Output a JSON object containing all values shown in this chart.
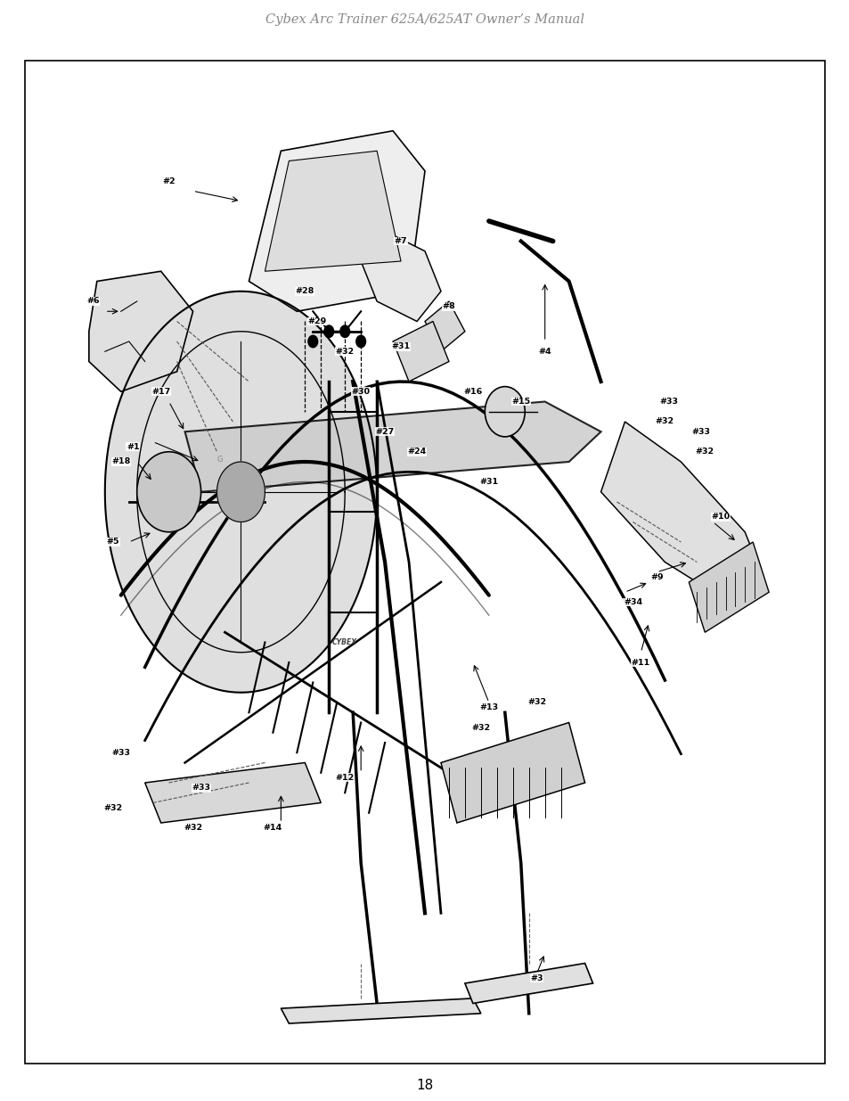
{
  "title": "Cybex Arc Trainer 625A/625AT Owner’s Manual",
  "title_color": "#888888",
  "title_style": "italic",
  "title_fontsize": 10.5,
  "page_number": "18",
  "page_number_fontsize": 11,
  "background_color": "#ffffff",
  "border_color": "#000000",
  "border_linewidth": 1.2,
  "fig_width": 9.54,
  "fig_height": 12.35,
  "dpi": 100
}
